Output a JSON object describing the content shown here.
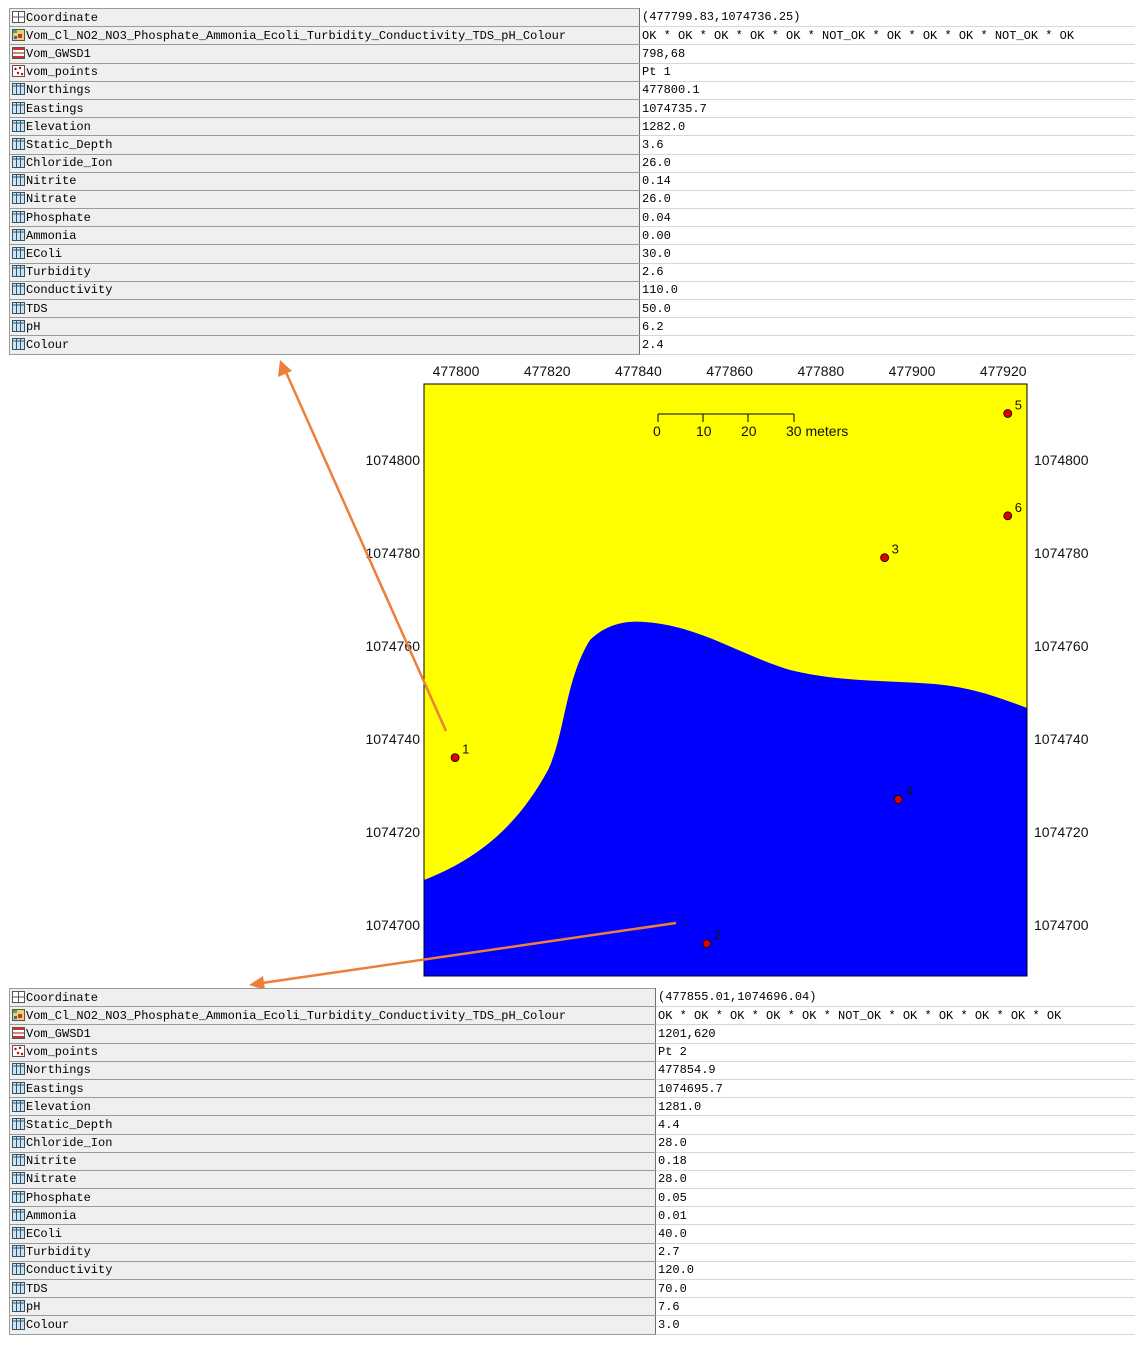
{
  "panel1": {
    "rows": [
      {
        "icon": "coordinate-icon",
        "key": "Coordinate",
        "value": "(477799.83,1074736.25)"
      },
      {
        "icon": "raster-icon",
        "key": "Vom_Cl_NO2_NO3_Phosphate_Ammonia_Ecoli_Turbidity_Conductivity_TDS_pH_Colour",
        "value": "OK * OK * OK * OK * OK * NOT_OK * OK * OK * OK * NOT_OK * OK"
      },
      {
        "icon": "map-layer-icon",
        "key": "Vom_GWSD1",
        "value": "798,68"
      },
      {
        "icon": "point-map-icon",
        "key": "vom_points",
        "value": "Pt 1"
      },
      {
        "icon": "column-icon",
        "key": "Northings",
        "value": "477800.1"
      },
      {
        "icon": "column-icon",
        "key": "Eastings",
        "value": "1074735.7"
      },
      {
        "icon": "column-icon",
        "key": "Elevation",
        "value": "1282.0"
      },
      {
        "icon": "column-icon",
        "key": "Static_Depth",
        "value": "3.6"
      },
      {
        "icon": "column-icon",
        "key": "Chloride_Ion",
        "value": "26.0"
      },
      {
        "icon": "column-icon",
        "key": "Nitrite",
        "value": "0.14"
      },
      {
        "icon": "column-icon",
        "key": "Nitrate",
        "value": "26.0"
      },
      {
        "icon": "column-icon",
        "key": "Phosphate",
        "value": "0.04"
      },
      {
        "icon": "column-icon",
        "key": "Ammonia",
        "value": "0.00"
      },
      {
        "icon": "column-icon",
        "key": "EColi",
        "value": "30.0"
      },
      {
        "icon": "column-icon",
        "key": "Turbidity",
        "value": "2.6"
      },
      {
        "icon": "column-icon",
        "key": "Conductivity",
        "value": "110.0"
      },
      {
        "icon": "column-icon",
        "key": "TDS",
        "value": "50.0"
      },
      {
        "icon": "column-icon",
        "key": "pH",
        "value": "6.2"
      },
      {
        "icon": "column-icon",
        "key": "Colour",
        "value": "2.4"
      }
    ]
  },
  "panel2": {
    "rows": [
      {
        "icon": "coordinate-icon",
        "key": "Coordinate",
        "value": "(477855.01,1074696.04)"
      },
      {
        "icon": "raster-icon",
        "key": "Vom_Cl_NO2_NO3_Phosphate_Ammonia_Ecoli_Turbidity_Conductivity_TDS_pH_Colour",
        "value": "OK * OK * OK * OK * OK * NOT_OK * OK * OK * OK * OK * OK"
      },
      {
        "icon": "map-layer-icon",
        "key": "Vom_GWSD1",
        "value": "1201,620"
      },
      {
        "icon": "point-map-icon",
        "key": "vom_points",
        "value": "Pt 2"
      },
      {
        "icon": "column-icon",
        "key": "Northings",
        "value": "477854.9"
      },
      {
        "icon": "column-icon",
        "key": "Eastings",
        "value": "1074695.7"
      },
      {
        "icon": "column-icon",
        "key": "Elevation",
        "value": "1281.0"
      },
      {
        "icon": "column-icon",
        "key": "Static_Depth",
        "value": "4.4"
      },
      {
        "icon": "column-icon",
        "key": "Chloride_Ion",
        "value": "28.0"
      },
      {
        "icon": "column-icon",
        "key": "Nitrite",
        "value": "0.18"
      },
      {
        "icon": "column-icon",
        "key": "Nitrate",
        "value": "28.0"
      },
      {
        "icon": "column-icon",
        "key": "Phosphate",
        "value": "0.05"
      },
      {
        "icon": "column-icon",
        "key": "Ammonia",
        "value": "0.01"
      },
      {
        "icon": "column-icon",
        "key": "EColi",
        "value": "40.0"
      },
      {
        "icon": "column-icon",
        "key": "Turbidity",
        "value": "2.7"
      },
      {
        "icon": "column-icon",
        "key": "Conductivity",
        "value": "120.0"
      },
      {
        "icon": "column-icon",
        "key": "TDS",
        "value": "70.0"
      },
      {
        "icon": "column-icon",
        "key": "pH",
        "value": "7.6"
      },
      {
        "icon": "column-icon",
        "key": "Colour",
        "value": "3.0"
      }
    ]
  },
  "map": {
    "colors": {
      "ok_zone": "#ffff00",
      "not_ok_zone": "#0000ff",
      "point": "#e00000",
      "arrow": "#ee7f3a"
    },
    "x_ticks": [
      "477800",
      "477820",
      "477840",
      "477860",
      "477880",
      "477900",
      "477920"
    ],
    "y_ticks": [
      "1074800",
      "1074780",
      "1074760",
      "1074740",
      "1074720",
      "1074700"
    ],
    "scale_bar": {
      "ticks": [
        "0",
        "10",
        "20",
        "30 meters"
      ]
    },
    "points": [
      {
        "label": "1",
        "northing": 477799.8,
        "easting": 1074736
      },
      {
        "label": "2",
        "northing": 477855,
        "easting": 1074696
      },
      {
        "label": "3",
        "northing": 477894,
        "easting": 1074779
      },
      {
        "label": "4",
        "northing": 477897,
        "easting": 1074727
      },
      {
        "label": "5",
        "northing": 477921,
        "easting": 1074810
      },
      {
        "label": "6",
        "northing": 477921,
        "easting": 1074788
      }
    ]
  }
}
